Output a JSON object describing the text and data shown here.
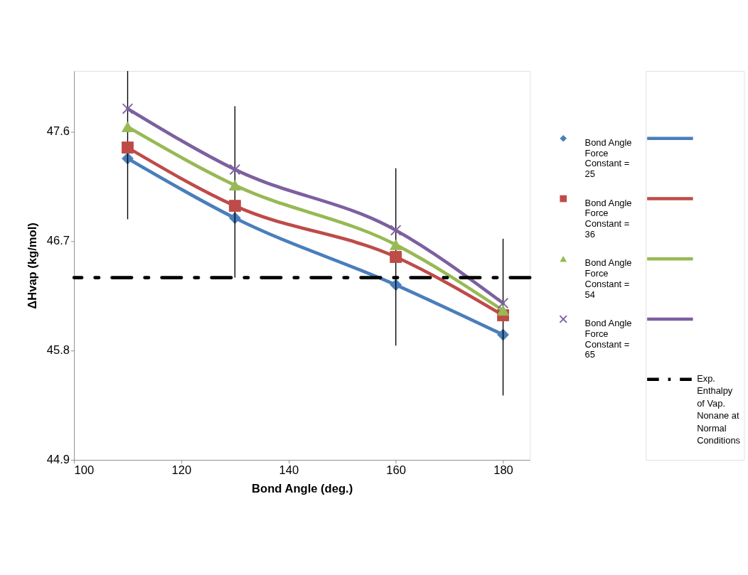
{
  "chart_data": {
    "type": "line",
    "xlabel": "Bond Angle (deg.)",
    "ylabel": "ΔHvap (kg/mol)",
    "x": [
      110,
      130,
      160,
      180
    ],
    "xlim": [
      100,
      185
    ],
    "xticks": [
      100,
      120,
      140,
      160,
      180
    ],
    "ylim": [
      44.9,
      48.1
    ],
    "yticks": [
      44.9,
      45.8,
      46.7,
      47.6
    ],
    "grid": false,
    "legend": "right",
    "series": [
      {
        "name": "Bond Angle Force Constant = 25",
        "color": "#4a7ebb",
        "marker": "diamond",
        "values": [
          47.38,
          46.89,
          46.34,
          45.93
        ]
      },
      {
        "name": "Bond Angle Force Constant = 36",
        "color": "#be4b48",
        "marker": "square",
        "values": [
          47.47,
          46.99,
          46.57,
          46.09
        ],
        "errors": [
          [
            46.88,
            48.1
          ],
          [
            46.4,
            47.81
          ],
          [
            45.84,
            47.3
          ],
          [
            45.43,
            46.72
          ]
        ]
      },
      {
        "name": "Bond Angle Force Constant = 54",
        "color": "#98b954",
        "marker": "triangle",
        "values": [
          47.64,
          47.16,
          46.67,
          46.13
        ]
      },
      {
        "name": "Bond Angle Force Constant = 65",
        "color": "#7d60a0",
        "marker": "cross",
        "values": [
          47.79,
          47.29,
          46.79,
          46.19
        ]
      }
    ],
    "ref_lines": [
      {
        "axis": "y",
        "value": 46.4,
        "label": "Exp. Enthalpy of Vap. Nonane at Normal Conditions",
        "color": "#000000",
        "line_style": "dashed"
      }
    ]
  }
}
